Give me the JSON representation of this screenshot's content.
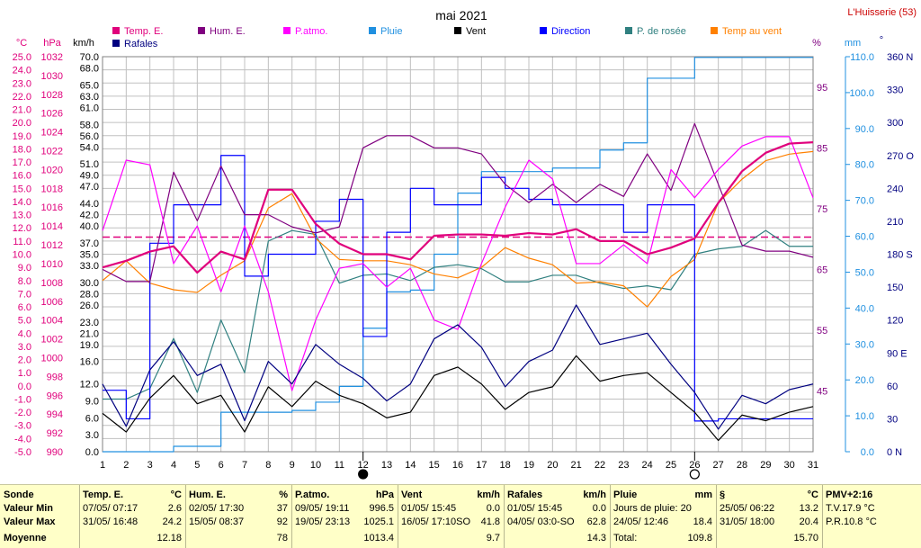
{
  "title": "mai 2021",
  "station": "L'Huisserie (53)",
  "legend": [
    {
      "label": "Temp. E.",
      "color": "#e0007c"
    },
    {
      "label": "Hum. E.",
      "color": "#800080"
    },
    {
      "label": "P.atmo.",
      "color": "#ff00ff"
    },
    {
      "label": "Pluie",
      "color": "#2090e0"
    },
    {
      "label": "Vent",
      "color": "#000000"
    },
    {
      "label": "Direction",
      "color": "#0000ff"
    },
    {
      "label": "P. de rosée",
      "color": "#308080"
    },
    {
      "label": "Temp au vent",
      "color": "#ff8000"
    },
    {
      "label": "Rafales",
      "color": "#000080"
    }
  ],
  "axis_units": {
    "temp": "°C",
    "press": "hPa",
    "wind": "km/h",
    "hum": "%",
    "rain": "mm",
    "dir": "°"
  },
  "colors": {
    "temp_axis": "#e0007c",
    "wind_axis": "#000000",
    "hum_axis": "#800080",
    "rain_axis": "#2090e0",
    "dir_axis": "#000080",
    "grid": "#c0c0c0",
    "ref_line": "#e0007c"
  },
  "moon_marks": [
    {
      "day": 12,
      "phase": "new"
    },
    {
      "day": 26,
      "phase": "full"
    }
  ],
  "chart_data": {
    "type": "line",
    "x": [
      1,
      2,
      3,
      4,
      5,
      6,
      7,
      8,
      9,
      10,
      11,
      12,
      13,
      14,
      15,
      16,
      17,
      18,
      19,
      20,
      21,
      22,
      23,
      24,
      25,
      26,
      27,
      28,
      29,
      30,
      31
    ],
    "temp_axis": {
      "min": -5,
      "max": 25,
      "step": 1
    },
    "press_axis": {
      "min": 990,
      "max": 1032,
      "step": 2
    },
    "wind_axis": {
      "min": 0,
      "max": 70,
      "ticks": [
        0,
        3,
        6,
        9,
        12,
        16,
        19,
        21,
        23,
        26,
        28,
        30,
        33,
        35,
        37,
        40,
        42,
        44,
        47,
        49,
        51,
        54,
        56,
        58,
        61,
        63,
        65,
        68,
        70
      ]
    },
    "hum_axis": {
      "min": 35,
      "max": 100,
      "ticks": [
        45,
        55,
        65,
        75,
        85,
        95
      ]
    },
    "rain_axis": {
      "min": 0,
      "max": 110,
      "step": 10
    },
    "dir_axis": {
      "min": 0,
      "max": 360,
      "ticks": [
        {
          "v": 0,
          "l": "0   N"
        },
        {
          "v": 30,
          "l": "30"
        },
        {
          "v": 60,
          "l": "60"
        },
        {
          "v": 90,
          "l": "90  E"
        },
        {
          "v": 120,
          "l": "120"
        },
        {
          "v": 150,
          "l": "150"
        },
        {
          "v": 180,
          "l": "180  S"
        },
        {
          "v": 210,
          "l": "210"
        },
        {
          "v": 240,
          "l": "240"
        },
        {
          "v": 270,
          "l": "270 O"
        },
        {
          "v": 300,
          "l": "300"
        },
        {
          "v": 330,
          "l": "330"
        },
        {
          "v": 360,
          "l": "360 N"
        }
      ]
    },
    "reference_temp": 11.3,
    "series": [
      {
        "name": "Temp. E.",
        "axis": "temp",
        "values": [
          9.0,
          9.5,
          10.2,
          10.6,
          8.6,
          10.2,
          9.6,
          14.9,
          14.9,
          12.3,
          10.8,
          10.0,
          10.0,
          9.6,
          11.4,
          11.5,
          11.5,
          11.4,
          11.6,
          11.5,
          11.9,
          11.0,
          11.0,
          10.0,
          10.5,
          11.2,
          13.9,
          16.3,
          17.7,
          18.4,
          18.5
        ]
      },
      {
        "name": "Hum. E.",
        "axis": "hum",
        "values": [
          65,
          63,
          63,
          81,
          73,
          82,
          74,
          74,
          72,
          71,
          72,
          85,
          87,
          87,
          85,
          85,
          84,
          79,
          76,
          79,
          76,
          79,
          77,
          84,
          78,
          89,
          79,
          69,
          68,
          68,
          67
        ]
      },
      {
        "name": "P.atmo.",
        "axis": "press",
        "values": [
          1013.5,
          1021,
          1020.5,
          1010,
          1014,
          1007,
          1014,
          1007,
          996.5,
          1004,
          1009.5,
          1010,
          1007.5,
          1009.5,
          1004,
          1003,
          1010,
          1016,
          1021,
          1019,
          1010,
          1010,
          1012,
          1010,
          1020,
          1017,
          1020,
          1022.5,
          1023.5,
          1023.5,
          1017
        ]
      },
      {
        "name": "Pluie",
        "axis": "rain",
        "values": [
          0,
          0,
          0,
          1.5,
          1.5,
          11,
          11,
          11,
          11.5,
          13.8,
          18.2,
          34.4,
          44.5,
          45,
          55,
          72,
          78,
          78,
          78,
          79,
          79,
          84,
          86,
          104,
          104,
          109.8,
          109.8,
          109.8,
          109.8,
          109.8,
          109.8
        ]
      },
      {
        "name": "Vent",
        "axis": "wind",
        "values": [
          6.8,
          3.5,
          9.5,
          13.5,
          8.5,
          10,
          3.5,
          11.5,
          8,
          12.5,
          10,
          8.5,
          6,
          7,
          13.5,
          15,
          12,
          7.5,
          10.5,
          11.5,
          17,
          12.5,
          13.5,
          14,
          10.5,
          7,
          2,
          6.5,
          5.5,
          7,
          8
        ]
      },
      {
        "name": "Direction",
        "axis": "dir",
        "values": [
          56,
          30,
          190,
          225,
          225,
          270,
          160,
          180,
          180,
          210,
          230,
          105,
          200,
          240,
          225,
          225,
          250,
          240,
          230,
          225,
          225,
          225,
          200,
          225,
          225,
          28,
          30,
          30,
          30,
          30,
          30
        ]
      },
      {
        "name": "P. de rosée",
        "axis": "temp",
        "values": [
          -1,
          -1,
          -0.2,
          3.6,
          -0.5,
          5.0,
          1.0,
          11.0,
          11.8,
          11.5,
          7.8,
          8.4,
          8.5,
          8.0,
          9.0,
          9.2,
          8.9,
          7.9,
          7.9,
          8.4,
          8.4,
          7.8,
          7.4,
          7.6,
          7.3,
          10.0,
          10.4,
          10.6,
          11.8,
          10.6,
          10.6
        ]
      },
      {
        "name": "Temp au vent",
        "axis": "temp",
        "values": [
          8.0,
          9.5,
          7.8,
          7.3,
          7.1,
          8.4,
          9.5,
          13.5,
          14.6,
          11.2,
          9.6,
          9.5,
          9.5,
          9.2,
          8.5,
          8.2,
          9.0,
          10.5,
          9.7,
          9.2,
          7.8,
          7.9,
          7.6,
          6.0,
          8.3,
          9.6,
          13.9,
          15.7,
          17.1,
          17.6,
          17.8
        ]
      },
      {
        "name": "Rafales",
        "axis": "wind",
        "values": [
          12,
          4.5,
          14.5,
          19.5,
          13.5,
          15.5,
          5.5,
          16,
          12,
          19,
          15.5,
          13,
          9,
          12,
          20,
          22.5,
          18.5,
          11.5,
          16,
          18,
          26,
          19,
          20,
          21,
          15.5,
          10.5,
          4,
          10,
          8.5,
          11,
          12
        ]
      }
    ]
  },
  "stats": {
    "sonde": {
      "title": "Sonde",
      "rows": [
        "Valeur Min",
        "Valeur Max",
        "Moyenne"
      ]
    },
    "temp": {
      "title": "Temp. E.",
      "unit": "°C",
      "rows": [
        {
          "d": "07/05/ 07:17",
          "v": "2.6"
        },
        {
          "d": "31/05/ 16:48",
          "v": "24.2"
        },
        {
          "d": "",
          "v": "12.18"
        }
      ]
    },
    "hum": {
      "title": "Hum. E.",
      "unit": "%",
      "rows": [
        {
          "d": "02/05/ 17:30",
          "v": "37"
        },
        {
          "d": "15/05/ 08:37",
          "v": "92"
        },
        {
          "d": "",
          "v": "78"
        }
      ]
    },
    "press": {
      "title": "P.atmo.",
      "unit": "hPa",
      "rows": [
        {
          "d": "09/05/ 19:11",
          "v": "996.5"
        },
        {
          "d": "19/05/ 23:13",
          "v": "1025.1"
        },
        {
          "d": "",
          "v": "1013.4"
        }
      ]
    },
    "wind": {
      "title": "Vent",
      "unit": "km/h",
      "rows": [
        {
          "d": "01/05/ 15:45",
          "v": "0.0"
        },
        {
          "d": "16/05/ 17:10SO",
          "v": "41.8"
        },
        {
          "d": "",
          "v": "9.7"
        }
      ]
    },
    "gust": {
      "title": "Rafales",
      "unit": "km/h",
      "rows": [
        {
          "d": "01/05/ 15:45",
          "v": "0.0"
        },
        {
          "d": "04/05/ 03:0-SO",
          "v": "62.8"
        },
        {
          "d": "",
          "v": "14.3"
        }
      ]
    },
    "rain": {
      "title": "Pluie",
      "unit": "mm",
      "rows": [
        {
          "d": "Jours de pluie: 20",
          "v": ""
        },
        {
          "d": "24/05/ 12:46",
          "v": "18.4"
        },
        {
          "d": "Total:",
          "v": "109.8"
        }
      ]
    },
    "soil": {
      "title": "§",
      "unit": "°C",
      "rows": [
        {
          "d": "25/05/ 06:22",
          "v": "13.2"
        },
        {
          "d": "31/05/ 18:00",
          "v": "20.4"
        },
        {
          "d": "",
          "v": "15.70"
        }
      ]
    },
    "pmv": {
      "title": "PMV+2:16",
      "rows": [
        "T.V.17.9 °C",
        "P.R.10.8 °C"
      ]
    }
  }
}
